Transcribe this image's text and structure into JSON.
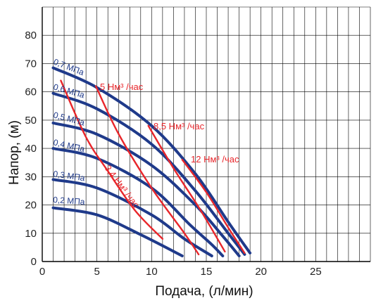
{
  "chart_data": {
    "type": "line",
    "xlabel": "Подача, (л/мин)",
    "ylabel": "Напор, (м)",
    "xlim": [
      0,
      30
    ],
    "ylim": [
      0,
      90
    ],
    "xticks": [
      "0",
      "5",
      "10",
      "15",
      "20",
      "25"
    ],
    "xtick_values": [
      0,
      5,
      10,
      15,
      20,
      25
    ],
    "yticks": [
      "0",
      "10",
      "20",
      "30",
      "40",
      "50",
      "60",
      "70",
      "80"
    ],
    "ytick_values": [
      0,
      10,
      20,
      30,
      40,
      50,
      60,
      70,
      80
    ],
    "grid": true,
    "colors": {
      "pressure": "#1f3a8a",
      "airflow": "#e8262b",
      "grid": "#000000"
    },
    "pressure_series": [
      {
        "name": "0,7 МПа",
        "points": [
          [
            1,
            68.5
          ],
          [
            5,
            61.5
          ],
          [
            10,
            48
          ],
          [
            14,
            31
          ],
          [
            17,
            14
          ],
          [
            19,
            3
          ]
        ]
      },
      {
        "name": "0,6 МПа",
        "points": [
          [
            1,
            59.5
          ],
          [
            5,
            54
          ],
          [
            10,
            41.5
          ],
          [
            14,
            25
          ],
          [
            17,
            10
          ],
          [
            18.5,
            2.5
          ]
        ]
      },
      {
        "name": "0,5 МПа",
        "points": [
          [
            1,
            49
          ],
          [
            5,
            45
          ],
          [
            10,
            34
          ],
          [
            14,
            20
          ],
          [
            16.5,
            9
          ],
          [
            18,
            2
          ]
        ]
      },
      {
        "name": "0,4 МПа",
        "points": [
          [
            1,
            40
          ],
          [
            5,
            36.5
          ],
          [
            10,
            26
          ],
          [
            13.5,
            13
          ],
          [
            15.5,
            6
          ],
          [
            16.5,
            2
          ]
        ]
      },
      {
        "name": "0,3 МПа",
        "points": [
          [
            1,
            29
          ],
          [
            5,
            26
          ],
          [
            10,
            16.5
          ],
          [
            13,
            8
          ],
          [
            15.5,
            2
          ]
        ]
      },
      {
        "name": "0,2 МПа",
        "points": [
          [
            1,
            19
          ],
          [
            5,
            16.5
          ],
          [
            9,
            9.5
          ],
          [
            12.8,
            2
          ]
        ]
      }
    ],
    "airflow_series": [
      {
        "name": "3,4 Нм³ /час",
        "points": [
          [
            1.7,
            64
          ],
          [
            4,
            44
          ],
          [
            6,
            32
          ],
          [
            8.5,
            18
          ],
          [
            11,
            8
          ]
        ]
      },
      {
        "name": "5 Нм³ /час",
        "points": [
          [
            4.9,
            62
          ],
          [
            7,
            45
          ],
          [
            10,
            26
          ],
          [
            13,
            10
          ],
          [
            14.3,
            2.5
          ]
        ]
      },
      {
        "name": "8,5 Нм³ /час",
        "points": [
          [
            9.7,
            48
          ],
          [
            12,
            33
          ],
          [
            14.5,
            18
          ],
          [
            16.7,
            3.5
          ]
        ]
      },
      {
        "name": "12 Нм³ /час",
        "points": [
          [
            12.8,
            36
          ],
          [
            15,
            24.5
          ],
          [
            17,
            12
          ],
          [
            18.5,
            3
          ]
        ]
      }
    ],
    "labels": {
      "p07": "0,7 МПа",
      "p06": "0,6 МПа",
      "p05": "0,5 МПа",
      "p04": "0,4 МПа",
      "p03": "0,3 МПа",
      "p02": "0,2 МПа",
      "f5": "5 Нм³ /час",
      "f85": "8,5 Нм³ /час",
      "f12": "12 Нм³ /час",
      "f34": "3,4 Нм³ /час"
    }
  }
}
